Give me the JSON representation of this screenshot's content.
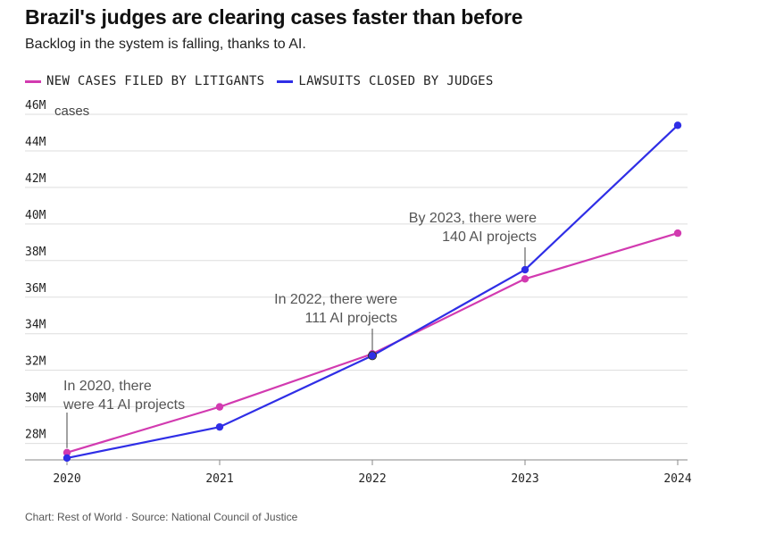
{
  "title": "Brazil's judges are clearing cases faster than before",
  "subtitle": "Backlog in the system is falling, thanks to AI.",
  "footer": "Chart: Rest of World · Source: National Council of Justice",
  "legend": [
    {
      "label": "NEW CASES FILED BY LITIGANTS",
      "color": "#d23ab0"
    },
    {
      "label": "LAWSUITS CLOSED BY JUDGES",
      "color": "#2f2ee6"
    }
  ],
  "chart_data": {
    "type": "line",
    "x": [
      2020,
      2021,
      2022,
      2023,
      2024
    ],
    "x_tick_labels": [
      "2020",
      "2021",
      "2022",
      "2023",
      "2024"
    ],
    "y_ticks": [
      28,
      30,
      32,
      34,
      36,
      38,
      40,
      42,
      44,
      46
    ],
    "y_tick_labels": [
      "28M",
      "30M",
      "32M",
      "34M",
      "36M",
      "38M",
      "40M",
      "42M",
      "44M",
      "46M"
    ],
    "y_unit_label": "cases",
    "ylim": [
      27.1,
      46
    ],
    "grid": true,
    "legend_position": "top-left",
    "series": [
      {
        "name": "NEW CASES FILED BY LITIGANTS",
        "color": "#d23ab0",
        "values": [
          27.5,
          30.0,
          32.9,
          37.0,
          39.5
        ]
      },
      {
        "name": "LAWSUITS CLOSED BY JUDGES",
        "color": "#2f2ee6",
        "values": [
          27.2,
          28.9,
          32.8,
          37.5,
          45.4
        ]
      }
    ],
    "annotations": [
      {
        "x": 2020,
        "lines": [
          "In 2020, there",
          "were 41 AI projects"
        ],
        "anchor": "start"
      },
      {
        "x": 2022,
        "lines": [
          "In 2022, there were",
          "111 AI projects"
        ],
        "anchor": "end"
      },
      {
        "x": 2023,
        "lines": [
          "By 2023, there were",
          "140 AI projects"
        ],
        "anchor": "end"
      }
    ]
  }
}
